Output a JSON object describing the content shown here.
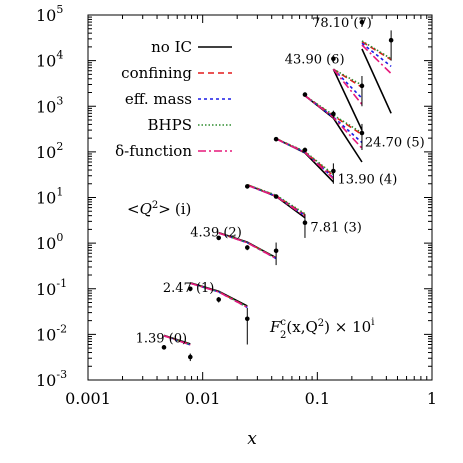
{
  "chart_data": {
    "type": "line",
    "xlabel": "x",
    "xscale": "log",
    "yscale": "log",
    "xlim": [
      0.001,
      1
    ],
    "ylim": [
      0.001,
      100000
    ],
    "x_ticks": [
      {
        "value": 0.001,
        "label": "0.001"
      },
      {
        "value": 0.01,
        "label": "0.01"
      },
      {
        "value": 0.1,
        "label": "0.1"
      },
      {
        "value": 1,
        "label": "1"
      }
    ],
    "y_ticks": [
      {
        "value": 0.001,
        "base": "10",
        "exp": "-3"
      },
      {
        "value": 0.01,
        "base": "10",
        "exp": "-2"
      },
      {
        "value": 0.1,
        "base": "10",
        "exp": "-1"
      },
      {
        "value": 1,
        "base": "10",
        "exp": "0"
      },
      {
        "value": 10,
        "base": "10",
        "exp": "1"
      },
      {
        "value": 100,
        "base": "10",
        "exp": "2"
      },
      {
        "value": 1000,
        "base": "10",
        "exp": "3"
      },
      {
        "value": 10000,
        "base": "10",
        "exp": "4"
      },
      {
        "value": 100000,
        "base": "10",
        "exp": "5"
      }
    ],
    "legend_position": "top-left",
    "grid": false,
    "series_styles": [
      {
        "name": "no IC",
        "color": "#000000",
        "dash": ""
      },
      {
        "name": "confining",
        "color": "#e41a1c",
        "dash": "6,4"
      },
      {
        "name": "eff. mass",
        "color": "#1a1ae6",
        "dash": "3,3"
      },
      {
        "name": "BHPS",
        "color": "#2e8b2e",
        "dash": "1.5,2"
      },
      {
        "name": "δ-function",
        "color": "#e6197a",
        "dash": "8,3,2,3"
      }
    ],
    "q2_header": {
      "open": "<",
      "sym": "Q",
      "sup": "2",
      "close": ">",
      "index": "(i)"
    },
    "formula": {
      "F": "F",
      "c": "c",
      "two": "2",
      "args": "(x,Q",
      "sq": "2",
      "end": ") × 10",
      "i": "i"
    },
    "groups": [
      {
        "label": "1.39 (0)",
        "label_pos": [
          0.0026,
          0.0085
        ],
        "data": [
          {
            "x": 0.0046,
            "y": 0.0052,
            "err": 0.0004
          },
          {
            "x": 0.0078,
            "y": 0.0032,
            "err": 0.0006
          }
        ],
        "curves": [
          {
            "series": "no IC",
            "x": [
              0.0046,
              0.0078
            ],
            "y": [
              0.0095,
              0.0062
            ]
          },
          {
            "series": "confining",
            "x": [
              0.0046,
              0.0078
            ],
            "y": [
              0.0094,
              0.006
            ]
          },
          {
            "series": "eff. mass",
            "x": [
              0.0046,
              0.0078
            ],
            "y": [
              0.0093,
              0.0059
            ]
          },
          {
            "series": "BHPS",
            "x": [
              0.0046,
              0.0078
            ],
            "y": [
              0.0094,
              0.006
            ]
          },
          {
            "series": "δ-function",
            "x": [
              0.0046,
              0.0078
            ],
            "y": [
              0.0093,
              0.0059
            ]
          }
        ]
      },
      {
        "label": "2.47 (1)",
        "label_pos": [
          0.0045,
          0.11
        ],
        "data": [
          {
            "x": 0.0078,
            "y": 0.1,
            "err": 0.012
          },
          {
            "x": 0.0138,
            "y": 0.058,
            "err": 0.008
          },
          {
            "x": 0.0245,
            "y": 0.022,
            "err": 0.016
          }
        ],
        "curves": [
          {
            "series": "no IC",
            "x": [
              0.0078,
              0.0138,
              0.0245
            ],
            "y": [
              0.135,
              0.088,
              0.042
            ]
          },
          {
            "series": "confining",
            "x": [
              0.0078,
              0.0138,
              0.0245
            ],
            "y": [
              0.133,
              0.086,
              0.04
            ]
          },
          {
            "series": "eff. mass",
            "x": [
              0.0078,
              0.0138,
              0.0245
            ],
            "y": [
              0.132,
              0.085,
              0.039
            ]
          },
          {
            "series": "BHPS",
            "x": [
              0.0078,
              0.0138,
              0.0245
            ],
            "y": [
              0.133,
              0.086,
              0.04
            ]
          },
          {
            "series": "δ-function",
            "x": [
              0.0078,
              0.0138,
              0.0245
            ],
            "y": [
              0.132,
              0.085,
              0.039
            ]
          }
        ]
      },
      {
        "label": "4.39 (2)",
        "label_pos": [
          0.0078,
          1.8
        ],
        "data": [
          {
            "x": 0.0138,
            "y": 1.3,
            "err": 0.1
          },
          {
            "x": 0.0245,
            "y": 0.8,
            "err": 0.1
          },
          {
            "x": 0.0437,
            "y": 0.68,
            "err": 0.35
          }
        ],
        "curves": [
          {
            "series": "no IC",
            "x": [
              0.0138,
              0.0245,
              0.0437
            ],
            "y": [
              1.7,
              1.05,
              0.48
            ]
          },
          {
            "series": "confining",
            "x": [
              0.0138,
              0.0245,
              0.0437
            ],
            "y": [
              1.68,
              1.03,
              0.47
            ]
          },
          {
            "series": "eff. mass",
            "x": [
              0.0138,
              0.0245,
              0.0437
            ],
            "y": [
              1.66,
              1.02,
              0.46
            ]
          },
          {
            "series": "BHPS",
            "x": [
              0.0138,
              0.0245,
              0.0437
            ],
            "y": [
              1.68,
              1.03,
              0.47
            ]
          },
          {
            "series": "δ-function",
            "x": [
              0.0138,
              0.0245,
              0.0437
            ],
            "y": [
              1.66,
              1.02,
              0.46
            ]
          }
        ]
      },
      {
        "label": "7.81 (3)",
        "label_pos": [
          0.087,
          2.3
        ],
        "data": [
          {
            "x": 0.0245,
            "y": 17.5,
            "err": 1.0
          },
          {
            "x": 0.0437,
            "y": 10.5,
            "err": 1.0
          },
          {
            "x": 0.078,
            "y": 2.8,
            "err": 1.5
          }
        ],
        "curves": [
          {
            "series": "no IC",
            "x": [
              0.0245,
              0.0437,
              0.078
            ],
            "y": [
              19.0,
              10.5,
              3.6
            ]
          },
          {
            "series": "confining",
            "x": [
              0.0245,
              0.0437,
              0.078
            ],
            "y": [
              19.0,
              11.0,
              4.2
            ]
          },
          {
            "series": "eff. mass",
            "x": [
              0.0245,
              0.0437,
              0.078
            ],
            "y": [
              18.5,
              10.8,
              4.0
            ]
          },
          {
            "series": "BHPS",
            "x": [
              0.0245,
              0.0437,
              0.078
            ],
            "y": [
              19.0,
              11.2,
              4.4
            ]
          },
          {
            "series": "δ-function",
            "x": [
              0.0245,
              0.0437,
              0.078
            ],
            "y": [
              18.5,
              10.6,
              3.9
            ]
          }
        ]
      },
      {
        "label": "13.90 (4)",
        "label_pos": [
          0.15,
          26
        ],
        "data": [
          {
            "x": 0.0437,
            "y": 190,
            "err": 10
          },
          {
            "x": 0.078,
            "y": 110,
            "err": 12
          },
          {
            "x": 0.138,
            "y": 38,
            "err": 18
          }
        ],
        "curves": [
          {
            "series": "no IC",
            "x": [
              0.0437,
              0.078,
              0.138
            ],
            "y": [
              195,
              95,
              22
            ]
          },
          {
            "series": "confining",
            "x": [
              0.0437,
              0.078,
              0.138
            ],
            "y": [
              195,
              100,
              30
            ]
          },
          {
            "series": "eff. mass",
            "x": [
              0.0437,
              0.078,
              0.138
            ],
            "y": [
              192,
              98,
              27
            ]
          },
          {
            "series": "BHPS",
            "x": [
              0.0437,
              0.078,
              0.138
            ],
            "y": [
              195,
              102,
              32
            ]
          },
          {
            "series": "δ-function",
            "x": [
              0.0437,
              0.078,
              0.138
            ],
            "y": [
              192,
              97,
              26
            ]
          }
        ]
      },
      {
        "label": "24.70 (5)",
        "label_pos": [
          0.26,
          170
        ],
        "data": [
          {
            "x": 0.078,
            "y": 1800,
            "err": 150
          },
          {
            "x": 0.138,
            "y": 680,
            "err": 120
          },
          {
            "x": 0.245,
            "y": 260,
            "err": 150
          }
        ],
        "curves": [
          {
            "series": "no IC",
            "x": [
              0.078,
              0.138,
              0.245
            ],
            "y": [
              1700,
              550,
              60
            ]
          },
          {
            "series": "confining",
            "x": [
              0.078,
              0.138,
              0.245
            ],
            "y": [
              1700,
              620,
              240
            ]
          },
          {
            "series": "eff. mass",
            "x": [
              0.078,
              0.138,
              0.245
            ],
            "y": [
              1700,
              580,
              160
            ]
          },
          {
            "series": "BHPS",
            "x": [
              0.078,
              0.138,
              0.245
            ],
            "y": [
              1700,
              640,
              260
            ]
          },
          {
            "series": "δ-function",
            "x": [
              0.078,
              0.138,
              0.245
            ],
            "y": [
              1700,
              570,
              120
            ]
          }
        ]
      },
      {
        "label": "43.90 (6)",
        "label_pos": [
          0.052,
          11000
        ],
        "data": [
          {
            "x": 0.138,
            "y": 11000,
            "err": 1500
          },
          {
            "x": 0.245,
            "y": 2800,
            "err": 1800
          }
        ],
        "curves": [
          {
            "series": "no IC",
            "x": [
              0.138,
              0.245
            ],
            "y": [
              6500,
              300
            ]
          },
          {
            "series": "confining",
            "x": [
              0.138,
              0.245
            ],
            "y": [
              6500,
              2600
            ]
          },
          {
            "series": "eff. mass",
            "x": [
              0.138,
              0.245
            ],
            "y": [
              6500,
              1500
            ]
          },
          {
            "series": "BHPS",
            "x": [
              0.138,
              0.245
            ],
            "y": [
              6500,
              2900
            ]
          },
          {
            "series": "δ-function",
            "x": [
              0.138,
              0.245
            ],
            "y": [
              6500,
              1100
            ]
          }
        ]
      },
      {
        "label": "78.10 (7)",
        "label_pos": [
          0.09,
          70000
        ],
        "data": [
          {
            "x": 0.245,
            "y": 70000,
            "err": 15000
          },
          {
            "x": 0.44,
            "y": 28000,
            "err": 18000
          }
        ],
        "curves": [
          {
            "series": "no IC",
            "x": [
              0.245,
              0.44
            ],
            "y": [
              18000,
              700
            ]
          },
          {
            "series": "confining",
            "x": [
              0.245,
              0.44
            ],
            "y": [
              26000,
              10500
            ]
          },
          {
            "series": "eff. mass",
            "x": [
              0.245,
              0.44
            ],
            "y": [
              24000,
              7500
            ]
          },
          {
            "series": "BHPS",
            "x": [
              0.245,
              0.44
            ],
            "y": [
              27000,
              11000
            ]
          },
          {
            "series": "δ-function",
            "x": [
              0.245,
              0.44
            ],
            "y": [
              22000,
              5200
            ]
          }
        ]
      }
    ]
  }
}
